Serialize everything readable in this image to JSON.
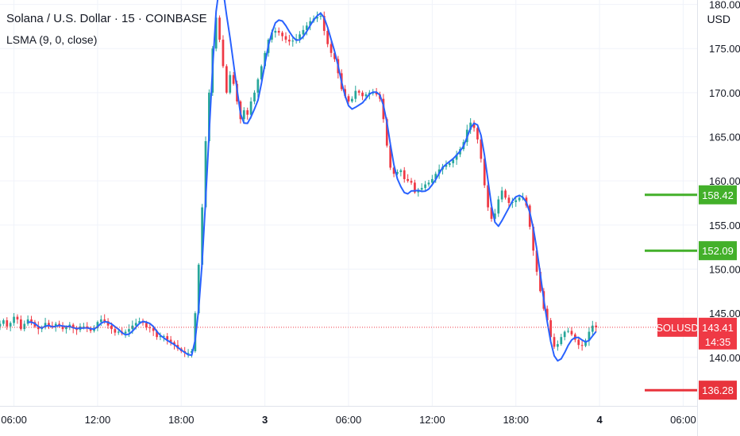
{
  "header": {
    "title": "Solana / U.S. Dollar · 15 · COINBASE",
    "indicator": "LSMA (9, 0, close)",
    "currency": "USD"
  },
  "colors": {
    "up": "#26a69a",
    "down": "#ef3945",
    "lsma": "#2962ff",
    "grid": "#f0f3fa",
    "axis_text": "#131722",
    "level_up": "#43b02a",
    "level_down": "#e8333c",
    "price_line": "#ef3945"
  },
  "chart_data": {
    "type": "candlestick",
    "title": "Solana / U.S. Dollar · 15 · COINBASE",
    "y_axis": {
      "range": [
        134.5,
        180.5
      ],
      "ticks": [
        "140.00",
        "145.00",
        "150.00",
        "155.00",
        "160.00",
        "165.00",
        "170.00",
        "175.00",
        "180.00"
      ]
    },
    "x_axis": {
      "range": [
        "2025-03-02 05:00",
        "2025-03-04 07:00"
      ],
      "ticks": [
        {
          "label": "06:00",
          "t": "2025-03-02 06:00"
        },
        {
          "label": "12:00",
          "t": "2025-03-02 12:00"
        },
        {
          "label": "18:00",
          "t": "2025-03-02 18:00"
        },
        {
          "label": "3",
          "t": "2025-03-03 00:00"
        },
        {
          "label": "06:00",
          "t": "2025-03-03 06:00"
        },
        {
          "label": "12:00",
          "t": "2025-03-03 12:00"
        },
        {
          "label": "18:00",
          "t": "2025-03-03 18:00"
        },
        {
          "label": "4",
          "t": "2025-03-04 00:00"
        },
        {
          "label": "06:00",
          "t": "2025-03-04 06:00"
        }
      ]
    },
    "price_path": {
      "start": "2025-03-02 05:00",
      "interval": "15m",
      "closes": [
        143.8,
        144.2,
        143.5,
        143.9,
        144.6,
        144.3,
        143.2,
        143.8,
        144.3,
        144.0,
        143.5,
        143.2,
        143.4,
        143.9,
        143.6,
        143.5,
        143.8,
        143.6,
        143.2,
        143.4,
        143.7,
        143.3,
        143.1,
        143.5,
        143.5,
        143.3,
        143.0,
        143.3,
        144.0,
        144.3,
        144.1,
        143.6,
        143.2,
        142.8,
        142.9,
        142.7,
        142.9,
        143.2,
        143.6,
        143.9,
        144.1,
        143.9,
        143.4,
        143.3,
        143.0,
        142.3,
        142.4,
        142.4,
        142.0,
        141.7,
        141.4,
        141.0,
        140.7,
        140.5,
        140.5,
        140.7,
        145.0,
        150.5,
        157.0,
        164.5,
        170.0,
        175.0,
        178.5,
        176.0,
        173.0,
        170.0,
        172.0,
        171.0,
        169.0,
        167.0,
        168.0,
        167.5,
        169.0,
        170.0,
        171.5,
        173.0,
        174.5,
        176.0,
        176.8,
        177.0,
        176.8,
        176.4,
        176.0,
        175.8,
        175.9,
        176.1,
        176.6,
        177.1,
        177.6,
        178.1,
        178.4,
        178.6,
        178.7,
        177.0,
        175.5,
        174.5,
        173.8,
        172.2,
        170.4,
        169.6,
        169.0,
        169.3,
        170.2,
        170.0,
        169.6,
        169.8,
        170.0,
        170.0,
        169.8,
        169.3,
        167.0,
        164.0,
        161.5,
        160.8,
        161.0,
        161.2,
        160.2,
        160.0,
        159.8,
        158.7,
        159.0,
        159.2,
        159.6,
        159.8,
        160.2,
        160.8,
        161.3,
        161.6,
        161.8,
        162.0,
        162.4,
        163.0,
        163.6,
        164.4,
        165.8,
        166.6,
        166.0,
        164.7,
        162.5,
        159.5,
        157.0,
        155.7,
        156.3,
        157.9,
        158.9,
        158.1,
        157.5,
        157.6,
        157.8,
        158.1,
        158.1,
        157.2,
        154.8,
        152.1,
        149.7,
        147.5,
        145.5,
        144.2,
        142.3,
        141.2,
        141.5,
        142.3,
        142.9,
        143.0,
        142.6,
        142.0,
        141.4,
        141.3,
        141.9,
        142.9,
        143.6,
        143.4
      ]
    },
    "lsma": {
      "period": 9,
      "offset": 0,
      "source": "close"
    },
    "current_price": {
      "symbol": "SOLUSD",
      "price": "143.41",
      "countdown": "14:35",
      "value": 143.41
    },
    "levels": [
      {
        "label": "158.42",
        "value": 158.42,
        "kind": "up"
      },
      {
        "label": "152.09",
        "value": 152.09,
        "kind": "up"
      },
      {
        "label": "136.28",
        "value": 136.28,
        "kind": "down"
      }
    ]
  }
}
